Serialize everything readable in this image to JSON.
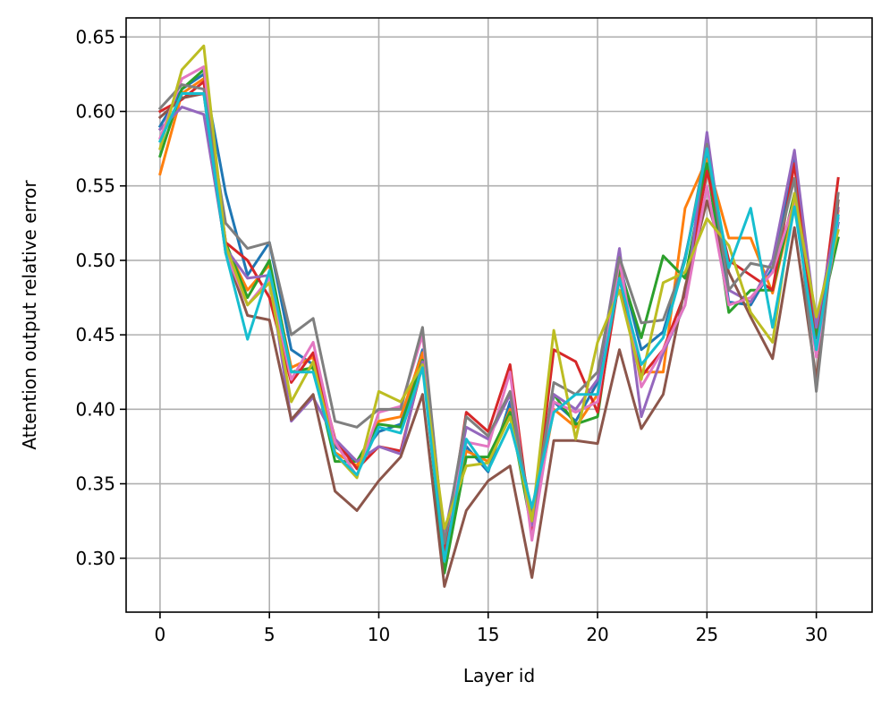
{
  "chart_data": {
    "type": "line",
    "title": "",
    "xlabel": "Layer id",
    "ylabel": "Attention output relative error",
    "xlim": [
      -1.55,
      32.55
    ],
    "ylim": [
      0.2638,
      0.6628
    ],
    "xticks": [
      0,
      5,
      10,
      15,
      20,
      25,
      30
    ],
    "xtick_labels": [
      "0",
      "5",
      "10",
      "15",
      "20",
      "25",
      "30"
    ],
    "yticks": [
      0.3,
      0.35,
      0.4,
      0.45,
      0.5,
      0.55,
      0.6,
      0.65
    ],
    "ytick_labels": [
      "0.30",
      "0.35",
      "0.40",
      "0.45",
      "0.50",
      "0.55",
      "0.60",
      "0.65"
    ],
    "grid": true,
    "legend": "none",
    "x": [
      0,
      1,
      2,
      3,
      4,
      5,
      6,
      7,
      8,
      9,
      10,
      11,
      12,
      13,
      14,
      15,
      16,
      17,
      18,
      19,
      20,
      21,
      22,
      23,
      24,
      25,
      26,
      27,
      28,
      29,
      30,
      31
    ],
    "series": [
      {
        "color": "#1f77b4",
        "values": [
          0.59,
          0.615,
          0.625,
          0.545,
          0.49,
          0.512,
          0.44,
          0.43,
          0.375,
          0.365,
          0.385,
          0.39,
          0.44,
          0.305,
          0.375,
          0.358,
          0.405,
          0.33,
          0.405,
          0.392,
          0.418,
          0.498,
          0.44,
          0.452,
          0.502,
          0.57,
          0.472,
          0.47,
          0.495,
          0.568,
          0.448,
          0.525
        ]
      },
      {
        "color": "#ff7f0e",
        "values": [
          0.558,
          0.612,
          0.622,
          0.51,
          0.48,
          0.497,
          0.428,
          0.435,
          0.371,
          0.362,
          0.392,
          0.395,
          0.438,
          0.3,
          0.372,
          0.365,
          0.4,
          0.32,
          0.4,
          0.388,
          0.41,
          0.49,
          0.425,
          0.425,
          0.535,
          0.568,
          0.515,
          0.515,
          0.478,
          0.542,
          0.45,
          0.533
        ]
      },
      {
        "color": "#2ca02c",
        "values": [
          0.57,
          0.615,
          0.628,
          0.512,
          0.475,
          0.5,
          0.425,
          0.428,
          0.365,
          0.365,
          0.39,
          0.388,
          0.433,
          0.29,
          0.368,
          0.368,
          0.398,
          0.318,
          0.41,
          0.39,
          0.395,
          0.495,
          0.448,
          0.503,
          0.488,
          0.565,
          0.465,
          0.48,
          0.48,
          0.545,
          0.45,
          0.515
        ]
      },
      {
        "color": "#d62728",
        "values": [
          0.6,
          0.608,
          0.62,
          0.512,
          0.5,
          0.475,
          0.418,
          0.438,
          0.38,
          0.36,
          0.375,
          0.372,
          0.43,
          0.302,
          0.398,
          0.385,
          0.43,
          0.318,
          0.44,
          0.432,
          0.398,
          0.488,
          0.422,
          0.44,
          0.478,
          0.56,
          0.5,
          0.49,
          0.48,
          0.565,
          0.438,
          0.555
        ]
      },
      {
        "color": "#9467bd",
        "values": [
          0.588,
          0.603,
          0.598,
          0.508,
          0.488,
          0.49,
          0.392,
          0.408,
          0.38,
          0.365,
          0.375,
          0.37,
          0.432,
          0.315,
          0.388,
          0.38,
          0.41,
          0.322,
          0.41,
          0.4,
          0.42,
          0.508,
          0.395,
          0.438,
          0.47,
          0.586,
          0.48,
          0.472,
          0.5,
          0.574,
          0.455,
          0.535
        ]
      },
      {
        "color": "#8c564b",
        "values": [
          0.596,
          0.609,
          0.612,
          0.505,
          0.463,
          0.46,
          0.393,
          0.41,
          0.345,
          0.332,
          0.352,
          0.368,
          0.41,
          0.281,
          0.332,
          0.352,
          0.362,
          0.287,
          0.379,
          0.379,
          0.377,
          0.44,
          0.387,
          0.41,
          0.482,
          0.54,
          0.492,
          0.462,
          0.434,
          0.522,
          0.42,
          0.54
        ]
      },
      {
        "color": "#e377c2",
        "values": [
          0.582,
          0.622,
          0.63,
          0.505,
          0.47,
          0.488,
          0.42,
          0.445,
          0.378,
          0.355,
          0.398,
          0.402,
          0.45,
          0.312,
          0.378,
          0.375,
          0.425,
          0.312,
          0.405,
          0.398,
          0.405,
          0.5,
          0.415,
          0.44,
          0.47,
          0.55,
          0.47,
          0.475,
          0.492,
          0.54,
          0.435,
          0.528
        ]
      },
      {
        "color": "#7f7f7f",
        "values": [
          0.602,
          0.618,
          0.615,
          0.525,
          0.508,
          0.512,
          0.45,
          0.461,
          0.392,
          0.388,
          0.4,
          0.4,
          0.455,
          0.31,
          0.395,
          0.382,
          0.412,
          0.325,
          0.418,
          0.41,
          0.425,
          0.502,
          0.458,
          0.46,
          0.5,
          0.578,
          0.48,
          0.498,
          0.495,
          0.555,
          0.412,
          0.545
        ]
      },
      {
        "color": "#bcbd22",
        "values": [
          0.575,
          0.628,
          0.644,
          0.51,
          0.47,
          0.485,
          0.405,
          0.432,
          0.37,
          0.354,
          0.412,
          0.405,
          0.43,
          0.32,
          0.362,
          0.364,
          0.395,
          0.325,
          0.453,
          0.38,
          0.445,
          0.48,
          0.42,
          0.485,
          0.492,
          0.528,
          0.51,
          0.465,
          0.445,
          0.545,
          0.462,
          0.52
        ]
      },
      {
        "color": "#17becf",
        "values": [
          0.58,
          0.612,
          0.612,
          0.505,
          0.447,
          0.493,
          0.425,
          0.425,
          0.37,
          0.356,
          0.388,
          0.384,
          0.428,
          0.298,
          0.38,
          0.359,
          0.39,
          0.334,
          0.398,
          0.41,
          0.41,
          0.488,
          0.43,
          0.448,
          0.5,
          0.575,
          0.495,
          0.535,
          0.455,
          0.536,
          0.44,
          0.53
        ]
      }
    ]
  }
}
